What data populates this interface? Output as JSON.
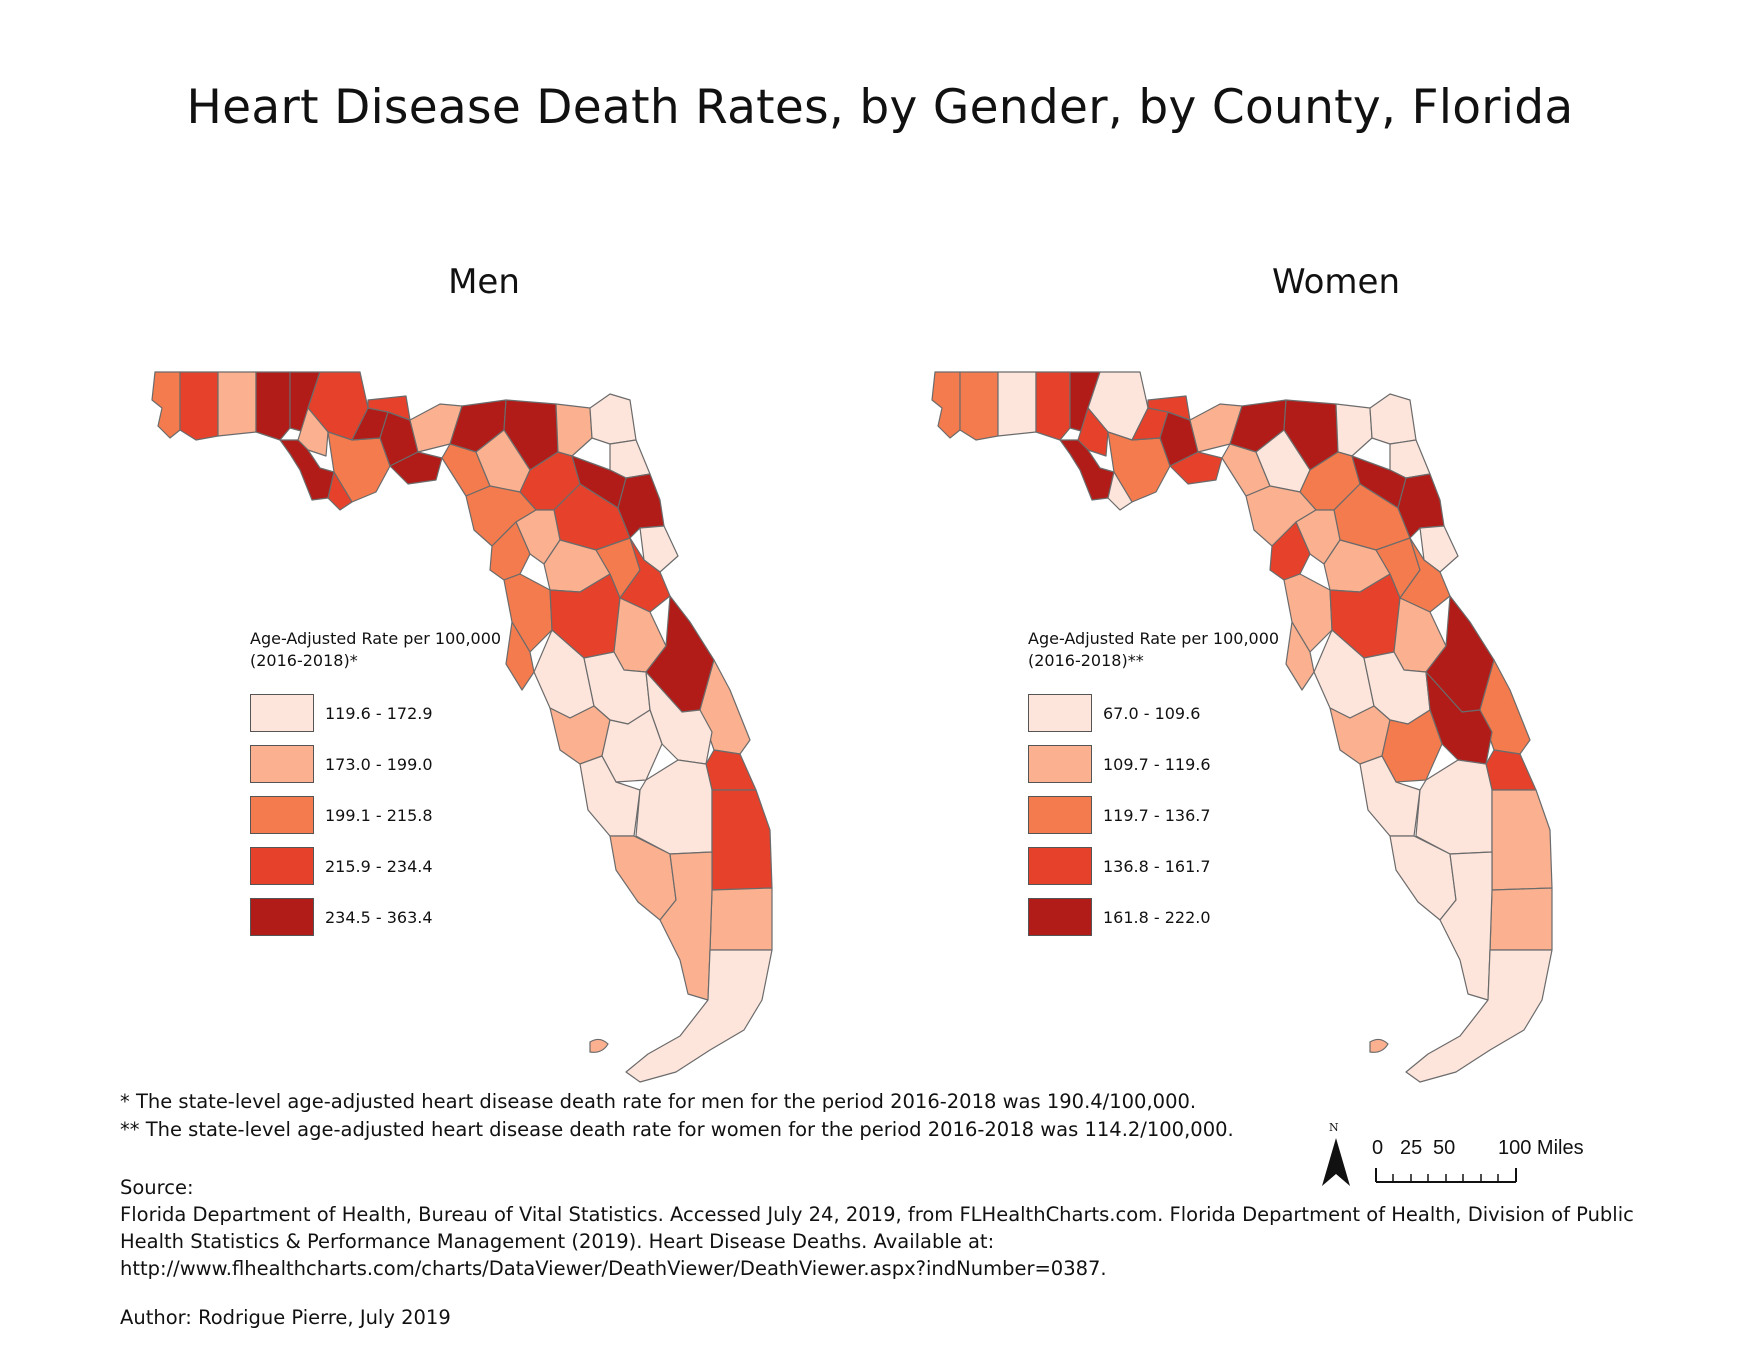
{
  "title": "Heart Disease Death Rates, by Gender, by County, Florida",
  "maps": [
    {
      "title": "Men",
      "legend_title_1": "Age-Adjusted Rate per 100,000",
      "legend_title_2": "(2016-2018)*",
      "classes": [
        {
          "label": "119.6 - 172.9",
          "color": "#fde5dc"
        },
        {
          "label": "173.0 - 199.0",
          "color": "#fbb190"
        },
        {
          "label": "199.1 - 215.8",
          "color": "#f47b4d"
        },
        {
          "label": "215.9 - 234.4",
          "color": "#e5412b"
        },
        {
          "label": "234.5 - 363.4",
          "color": "#b11c18"
        }
      ]
    },
    {
      "title": "Women",
      "legend_title_1": "Age-Adjusted Rate per 100,000",
      "legend_title_2": "(2016-2018)**",
      "classes": [
        {
          "label": "67.0 - 109.6",
          "color": "#fde5dc"
        },
        {
          "label": "109.7 - 119.6",
          "color": "#fbb190"
        },
        {
          "label": "119.7 - 136.7",
          "color": "#f47b4d"
        },
        {
          "label": "136.8 - 161.7",
          "color": "#e5412b"
        },
        {
          "label": "161.8 - 222.0",
          "color": "#b11c18"
        }
      ]
    }
  ],
  "notes": {
    "men": "* The state-level age-adjusted heart disease death rate for men for the period 2016-2018 was 190.4/100,000.",
    "women": "** The state-level age-adjusted heart disease death rate for women for the period 2016-2018 was 114.2/100,000."
  },
  "source": {
    "heading": "Source:",
    "line1": "Florida Department of Health, Bureau of Vital Statistics. Accessed July 24, 2019, from FLHealthCharts.com. Florida Department of Health, Division of Public",
    "line2": "Health Statistics & Performance Management (2019). Heart Disease Deaths. Available at:",
    "line3": "http://www.flhealthcharts.com/charts/DataViewer/DeathViewer/DeathViewer.aspx?indNumber=0387."
  },
  "author": "Author: Rodrigue Pierre, July 2019",
  "north_arrow": {
    "letter": "N"
  },
  "scale_bar": {
    "labels": [
      "0",
      "25",
      "50",
      "100 Miles"
    ]
  },
  "county_classes": {
    "men": [
      2,
      3,
      1,
      4,
      4,
      3,
      1,
      4,
      2,
      3,
      4,
      4,
      1,
      4,
      3,
      4,
      4,
      1,
      0,
      0,
      2,
      1,
      3,
      2,
      4,
      3,
      4,
      0,
      1,
      2,
      1,
      2,
      3,
      2,
      3,
      1,
      4,
      1,
      2,
      0,
      0,
      0,
      3,
      1,
      0,
      0,
      0,
      3,
      1,
      1,
      1,
      0
    ],
    "women": [
      2,
      2,
      0,
      3,
      4,
      0,
      3,
      4,
      2,
      0,
      3,
      4,
      1,
      3,
      3,
      4,
      4,
      0,
      0,
      0,
      1,
      0,
      2,
      1,
      4,
      2,
      4,
      0,
      1,
      3,
      1,
      2,
      2,
      1,
      3,
      1,
      4,
      2,
      1,
      0,
      0,
      4,
      3,
      1,
      2,
      0,
      0,
      1,
      0,
      1,
      0,
      0
    ]
  }
}
